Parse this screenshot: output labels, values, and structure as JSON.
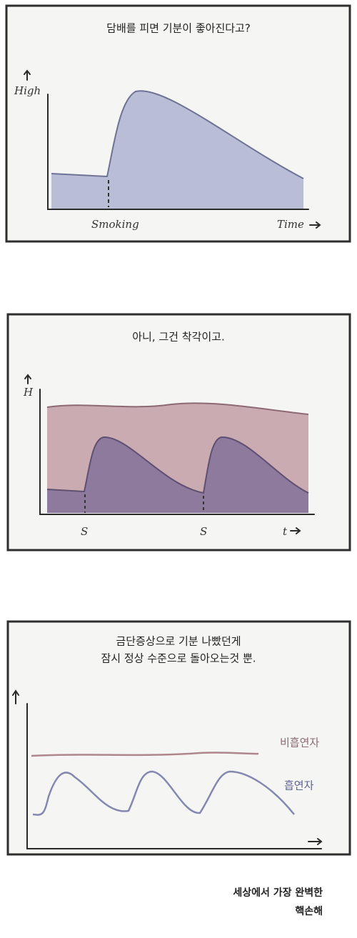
{
  "panels": [
    {
      "caption": [
        "담배를 피면 기분이 좋아진다고?"
      ],
      "y_axis_label": "High",
      "marker_label": "Smoking",
      "x_axis_label": "Time"
    },
    {
      "caption": [
        "아니, 그건 착각이고."
      ],
      "y_axis_label": "H",
      "marker_labels": [
        "S",
        "S"
      ],
      "x_axis_label": "t"
    },
    {
      "caption": [
        "금단증상으로 기분 나빴던게",
        "잠시 정상 수준으로 돌아오는것 뿐."
      ],
      "series_labels": [
        "비흡연자",
        "흡연자"
      ]
    }
  ],
  "footer": [
    "세상에서 가장 완벽한",
    "핵손해"
  ]
}
